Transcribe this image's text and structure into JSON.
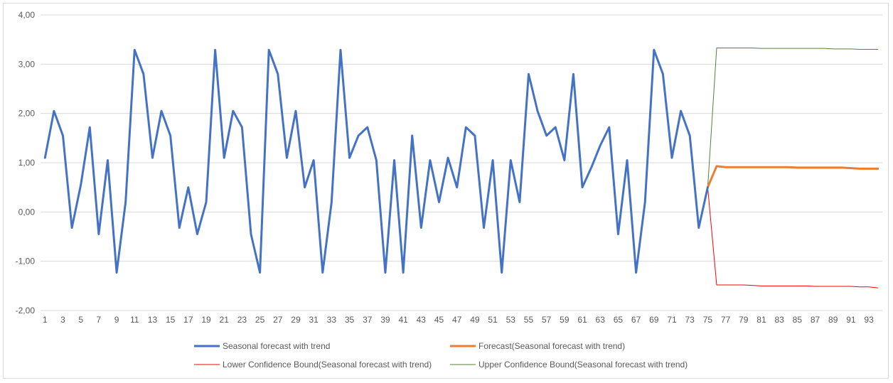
{
  "chart_data": {
    "type": "line",
    "title": "",
    "xlabel": "",
    "ylabel": "",
    "ylim": [
      -2,
      4
    ],
    "y_ticks": [
      -2,
      -1,
      0,
      1,
      2,
      3,
      4
    ],
    "y_tick_labels": [
      "-2,00",
      "-1,00",
      "0,00",
      "1,00",
      "2,00",
      "3,00",
      "4,00"
    ],
    "x_range": [
      1,
      94
    ],
    "x_tick_labels": [
      "1",
      "3",
      "5",
      "7",
      "9",
      "11",
      "13",
      "15",
      "17",
      "19",
      "21",
      "23",
      "25",
      "27",
      "29",
      "31",
      "33",
      "35",
      "37",
      "39",
      "41",
      "43",
      "45",
      "47",
      "49",
      "51",
      "53",
      "55",
      "57",
      "59",
      "61",
      "63",
      "65",
      "67",
      "69",
      "71",
      "73",
      "75",
      "77",
      "79",
      "81",
      "83",
      "85",
      "87",
      "89",
      "91",
      "93"
    ],
    "x_tick_values": [
      1,
      3,
      5,
      7,
      9,
      11,
      13,
      15,
      17,
      19,
      21,
      23,
      25,
      27,
      29,
      31,
      33,
      35,
      37,
      39,
      41,
      43,
      45,
      47,
      49,
      51,
      53,
      55,
      57,
      59,
      61,
      63,
      65,
      67,
      69,
      71,
      73,
      75,
      77,
      79,
      81,
      83,
      85,
      87,
      89,
      91,
      93
    ],
    "grid": "horizontal",
    "legend_position": "bottom",
    "series": [
      {
        "name": "Seasonal forecast with trend",
        "color": "#4472c4",
        "x": [
          1,
          2,
          3,
          4,
          5,
          6,
          7,
          8,
          9,
          10,
          11,
          12,
          13,
          14,
          15,
          16,
          17,
          18,
          19,
          20,
          21,
          22,
          23,
          24,
          25,
          26,
          27,
          28,
          29,
          30,
          31,
          32,
          33,
          34,
          35,
          36,
          37,
          38,
          39,
          40,
          41,
          42,
          43,
          44,
          45,
          46,
          47,
          48,
          49,
          50,
          51,
          52,
          53,
          54,
          55,
          56,
          57,
          58,
          59,
          60,
          61,
          62,
          63,
          64,
          65,
          66,
          67,
          68,
          69,
          70,
          71,
          72,
          73,
          74,
          75
        ],
        "values": [
          1.1,
          2.05,
          1.55,
          -0.32,
          0.55,
          1.72,
          -0.45,
          1.05,
          -1.23,
          0.2,
          3.29,
          2.8,
          1.1,
          2.05,
          1.55,
          -0.32,
          0.5,
          -0.45,
          0.2,
          3.29,
          1.1,
          2.05,
          1.72,
          -0.45,
          -1.23,
          3.29,
          2.8,
          1.1,
          2.05,
          0.5,
          1.05,
          -1.23,
          0.2,
          3.29,
          1.1,
          1.55,
          1.72,
          1.05,
          -1.23,
          1.05,
          -1.23,
          1.55,
          -0.32,
          1.05,
          0.2,
          1.1,
          0.5,
          1.72,
          1.55,
          -0.32,
          1.05,
          -1.23,
          1.05,
          0.2,
          2.8,
          2.05,
          1.55,
          1.72,
          1.05,
          2.8,
          0.5,
          0.9,
          1.35,
          1.72,
          -0.45,
          1.05,
          -1.23,
          0.2,
          3.29,
          2.8,
          1.1,
          2.05,
          1.55,
          -0.32,
          0.5
        ]
      },
      {
        "name": "Forecast(Seasonal forecast with trend)",
        "color": "#ed7d31",
        "x": [
          75,
          76,
          77,
          78,
          79,
          80,
          81,
          82,
          83,
          84,
          85,
          86,
          87,
          88,
          89,
          90,
          91,
          92,
          93,
          94
        ],
        "values": [
          0.5,
          0.93,
          0.91,
          0.91,
          0.91,
          0.91,
          0.91,
          0.91,
          0.91,
          0.91,
          0.9,
          0.9,
          0.9,
          0.9,
          0.9,
          0.9,
          0.89,
          0.88,
          0.88,
          0.88
        ]
      },
      {
        "name": "Lower Confidence Bound(Seasonal forecast with trend)",
        "color": "#ff0000",
        "x": [
          75,
          76,
          77,
          78,
          79,
          80,
          81,
          82,
          83,
          84,
          85,
          86,
          87,
          88,
          89,
          90,
          91,
          92,
          93,
          94
        ],
        "values": [
          0.5,
          -1.48,
          -1.48,
          -1.48,
          -1.48,
          -1.49,
          -1.5,
          -1.5,
          -1.5,
          -1.5,
          -1.5,
          -1.5,
          -1.51,
          -1.51,
          -1.51,
          -1.51,
          -1.51,
          -1.52,
          -1.52,
          -1.54
        ]
      },
      {
        "name": "Upper Confidence Bound(Seasonal forecast with trend)",
        "color": "#548235",
        "x": [
          75,
          76,
          77,
          78,
          79,
          80,
          81,
          82,
          83,
          84,
          85,
          86,
          87,
          88,
          89,
          90,
          91,
          92,
          93,
          94
        ],
        "values": [
          0.5,
          3.33,
          3.33,
          3.33,
          3.33,
          3.33,
          3.32,
          3.32,
          3.32,
          3.32,
          3.32,
          3.32,
          3.32,
          3.32,
          3.31,
          3.31,
          3.31,
          3.3,
          3.3,
          3.3
        ]
      }
    ]
  }
}
